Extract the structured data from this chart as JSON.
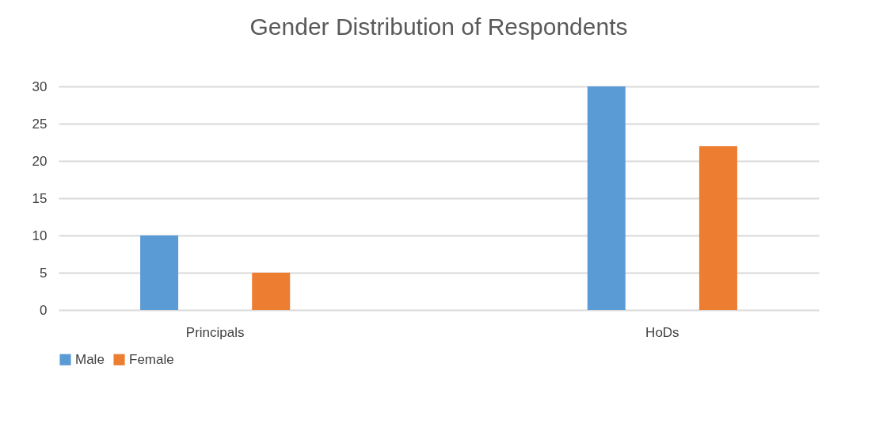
{
  "chart_data": {
    "type": "bar",
    "title": "Gender Distribution of Respondents",
    "categories": [
      "Principals",
      "HoDs"
    ],
    "series": [
      {
        "name": "Male",
        "color": "#5b9bd5",
        "values": [
          10,
          30
        ]
      },
      {
        "name": "Female",
        "color": "#ed7d31",
        "values": [
          5,
          22
        ]
      }
    ],
    "ylim": [
      0,
      30
    ],
    "yticks": [
      0,
      5,
      10,
      15,
      20,
      25,
      30
    ],
    "grid": "y",
    "legend": "bottom"
  }
}
